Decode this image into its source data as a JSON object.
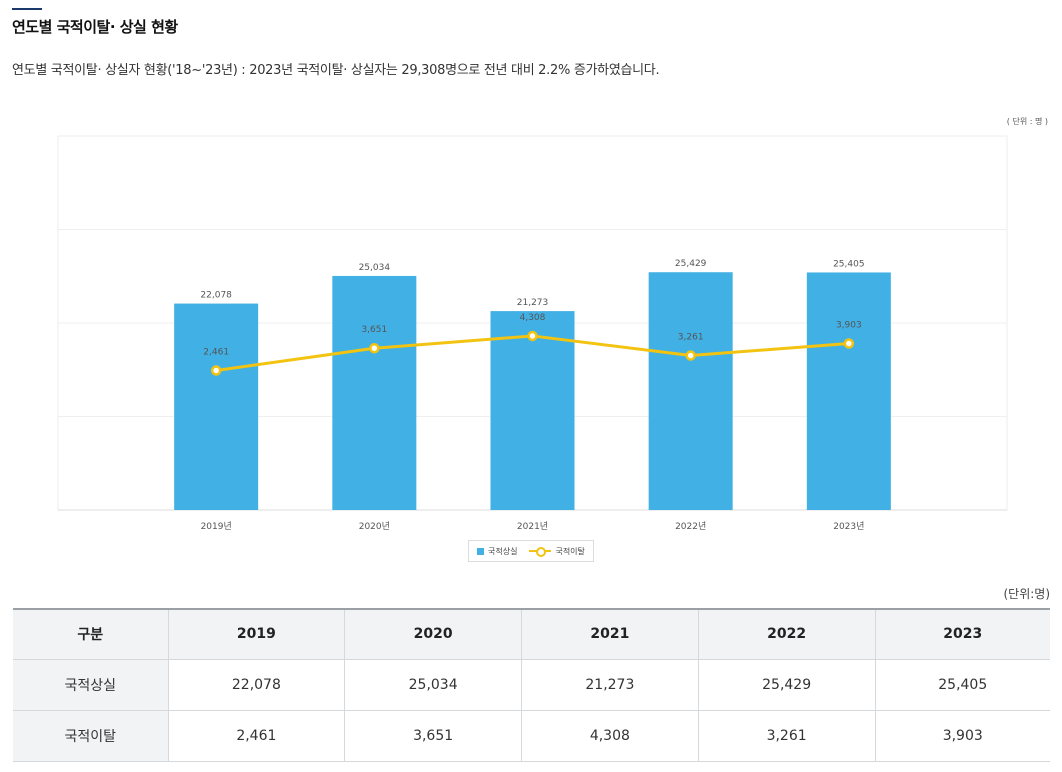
{
  "header": {
    "title": "연도별 국적이탈· 상실 현황",
    "subtitle": "연도별 국적이탈· 상실자 현황('18~'23년) : 2023년 국적이탈· 상실자는 29,308명으로 전년 대비 2.2% 증가하였습니다."
  },
  "chart_unit": "( 단위 : 명 )",
  "chart_data": {
    "type": "bar",
    "categories": [
      "2019년",
      "2020년",
      "2021년",
      "2022년",
      "2023년"
    ],
    "series": [
      {
        "name": "국적상실",
        "type": "bar",
        "color": "#41b0e4",
        "values": [
          22078,
          25034,
          21273,
          25429,
          25405
        ]
      },
      {
        "name": "국적이탈",
        "type": "line",
        "color": "#f2c311",
        "values": [
          2461,
          3651,
          4308,
          3261,
          3903
        ]
      }
    ],
    "bar_ylim": [
      0,
      40000
    ],
    "line_ylim": [
      -5000,
      15000
    ],
    "grid": true,
    "legend": "bottom"
  },
  "table": {
    "unit": "(단위:명)",
    "headers": [
      "구분",
      "2019",
      "2020",
      "2021",
      "2022",
      "2023"
    ],
    "rows": [
      {
        "label": "국적상실",
        "values": [
          "22,078",
          "25,034",
          "21,273",
          "25,429",
          "25,405"
        ]
      },
      {
        "label": "국적이탈",
        "values": [
          "2,461",
          "3,651",
          "4,308",
          "3,261",
          "3,903"
        ]
      }
    ]
  }
}
